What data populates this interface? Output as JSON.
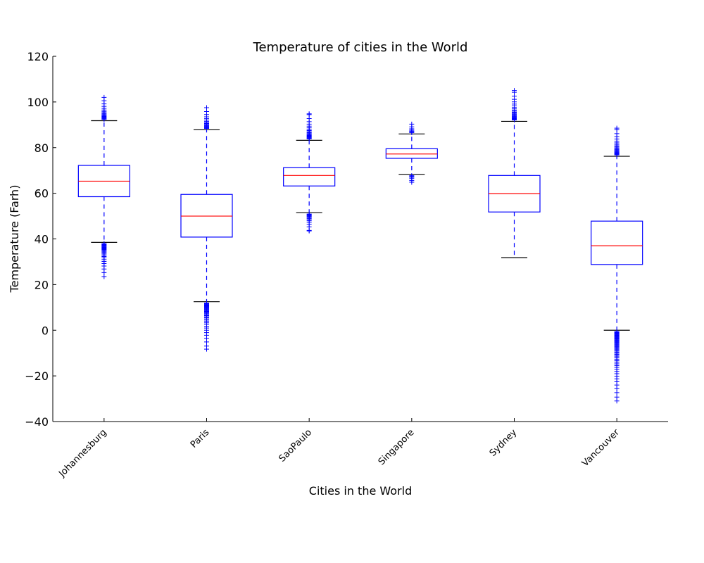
{
  "chart_data": {
    "type": "box",
    "title": "Temperature of cities in the World",
    "xlabel": "Cities in the World",
    "ylabel": "Temperature (Farh)",
    "ylim": [
      -40,
      120
    ],
    "yticks": [
      -40,
      -20,
      0,
      20,
      40,
      60,
      80,
      100,
      120
    ],
    "grid": false,
    "colors": {
      "box": "#0000ff",
      "median": "#ff0000",
      "whisker_cap": "#000000",
      "flier": "#0000ff"
    },
    "categories": [
      "Johannesburg",
      "Paris",
      "SaoPaulo",
      "Singapore",
      "Sydney",
      "Vancouver"
    ],
    "boxes": [
      {
        "category": "Johannesburg",
        "whisker_low": 38.5,
        "q1": 58.5,
        "median": 65.3,
        "q3": 72.2,
        "whisker_high": 91.8,
        "flier_low_min": 23.5,
        "flier_high_max": 102.0
      },
      {
        "category": "Paris",
        "whisker_low": 12.5,
        "q1": 40.8,
        "median": 50.0,
        "q3": 59.5,
        "whisker_high": 87.8,
        "flier_low_min": -8.3,
        "flier_high_max": 97.5
      },
      {
        "category": "SaoPaulo",
        "whisker_low": 51.5,
        "q1": 63.2,
        "median": 67.8,
        "q3": 71.2,
        "whisker_high": 83.2,
        "flier_low_min": 43.5,
        "flier_high_max": 94.8
      },
      {
        "category": "Singapore",
        "whisker_low": 68.3,
        "q1": 75.3,
        "median": 77.2,
        "q3": 79.5,
        "whisker_high": 86.0,
        "flier_low_min": 64.8,
        "flier_high_max": 90.3
      },
      {
        "category": "Sydney",
        "whisker_low": 31.8,
        "q1": 51.8,
        "median": 59.8,
        "q3": 67.8,
        "whisker_high": 91.5,
        "flier_low_min": null,
        "flier_high_max": 105.0
      },
      {
        "category": "Vancouver",
        "whisker_low": 0.0,
        "q1": 28.8,
        "median": 37.0,
        "q3": 47.8,
        "whisker_high": 76.2,
        "flier_low_min": -31.0,
        "flier_high_max": 88.5
      }
    ]
  }
}
